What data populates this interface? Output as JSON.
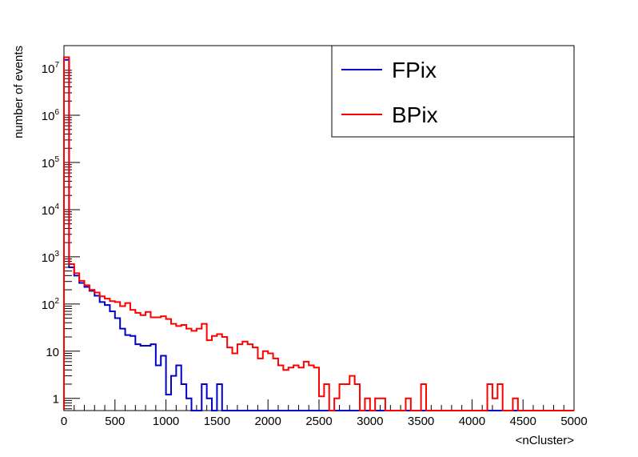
{
  "chart_data": {
    "type": "step-histogram",
    "xlabel": "<nCluster>",
    "ylabel": "number of events",
    "xlim": [
      0,
      5000
    ],
    "ylim": [
      0.55,
      30000000
    ],
    "yscale": "log",
    "bin_width": 50,
    "x_ticks": [
      0,
      500,
      1000,
      1500,
      2000,
      2500,
      3000,
      3500,
      4000,
      4500,
      5000
    ],
    "x_tick_labels": [
      "0",
      "500",
      "1000",
      "1500",
      "2000",
      "2500",
      "3000",
      "3500",
      "4000",
      "4500",
      "5000"
    ],
    "y_tick_labels": [
      {
        "value": 1,
        "base": "1",
        "exp": ""
      },
      {
        "value": 10,
        "base": "10",
        "exp": ""
      },
      {
        "value": 100,
        "base": "10",
        "exp": "2"
      },
      {
        "value": 1000,
        "base": "10",
        "exp": "3"
      },
      {
        "value": 10000,
        "base": "10",
        "exp": "4"
      },
      {
        "value": 100000,
        "base": "10",
        "exp": "5"
      },
      {
        "value": 1000000,
        "base": "10",
        "exp": "6"
      },
      {
        "value": 10000000,
        "base": "10",
        "exp": "7"
      }
    ],
    "legend_position": "top-right",
    "series": [
      {
        "name": "FPix",
        "color": "#0000cc",
        "bins": [
          {
            "x": 0,
            "y": 15000000
          },
          {
            "x": 50,
            "y": 600
          },
          {
            "x": 100,
            "y": 400
          },
          {
            "x": 150,
            "y": 280
          },
          {
            "x": 200,
            "y": 230
          },
          {
            "x": 250,
            "y": 190
          },
          {
            "x": 300,
            "y": 150
          },
          {
            "x": 350,
            "y": 110
          },
          {
            "x": 400,
            "y": 95
          },
          {
            "x": 450,
            "y": 70
          },
          {
            "x": 500,
            "y": 50
          },
          {
            "x": 550,
            "y": 30
          },
          {
            "x": 600,
            "y": 22
          },
          {
            "x": 650,
            "y": 21
          },
          {
            "x": 700,
            "y": 14
          },
          {
            "x": 750,
            "y": 13
          },
          {
            "x": 800,
            "y": 13
          },
          {
            "x": 850,
            "y": 14
          },
          {
            "x": 900,
            "y": 5
          },
          {
            "x": 950,
            "y": 8
          },
          {
            "x": 1000,
            "y": 1.2
          },
          {
            "x": 1050,
            "y": 3
          },
          {
            "x": 1100,
            "y": 5
          },
          {
            "x": 1150,
            "y": 2
          },
          {
            "x": 1200,
            "y": 1
          },
          {
            "x": 1350,
            "y": 2
          },
          {
            "x": 1400,
            "y": 1
          },
          {
            "x": 1500,
            "y": 2
          }
        ]
      },
      {
        "name": "BPix",
        "color": "#ff0000",
        "bins": [
          {
            "x": 0,
            "y": 17000000
          },
          {
            "x": 50,
            "y": 700
          },
          {
            "x": 100,
            "y": 450
          },
          {
            "x": 150,
            "y": 310
          },
          {
            "x": 200,
            "y": 250
          },
          {
            "x": 250,
            "y": 200
          },
          {
            "x": 300,
            "y": 175
          },
          {
            "x": 350,
            "y": 145
          },
          {
            "x": 400,
            "y": 130
          },
          {
            "x": 450,
            "y": 115
          },
          {
            "x": 500,
            "y": 110
          },
          {
            "x": 550,
            "y": 90
          },
          {
            "x": 600,
            "y": 105
          },
          {
            "x": 650,
            "y": 75
          },
          {
            "x": 700,
            "y": 65
          },
          {
            "x": 750,
            "y": 58
          },
          {
            "x": 800,
            "y": 68
          },
          {
            "x": 850,
            "y": 52
          },
          {
            "x": 900,
            "y": 52
          },
          {
            "x": 950,
            "y": 55
          },
          {
            "x": 1000,
            "y": 48
          },
          {
            "x": 1050,
            "y": 38
          },
          {
            "x": 1100,
            "y": 34
          },
          {
            "x": 1150,
            "y": 36
          },
          {
            "x": 1200,
            "y": 30
          },
          {
            "x": 1250,
            "y": 27
          },
          {
            "x": 1300,
            "y": 30
          },
          {
            "x": 1350,
            "y": 38
          },
          {
            "x": 1400,
            "y": 17
          },
          {
            "x": 1450,
            "y": 21
          },
          {
            "x": 1500,
            "y": 23
          },
          {
            "x": 1550,
            "y": 20
          },
          {
            "x": 1600,
            "y": 12
          },
          {
            "x": 1650,
            "y": 9
          },
          {
            "x": 1700,
            "y": 14
          },
          {
            "x": 1750,
            "y": 16
          },
          {
            "x": 1800,
            "y": 14
          },
          {
            "x": 1850,
            "y": 12
          },
          {
            "x": 1900,
            "y": 7
          },
          {
            "x": 1950,
            "y": 10
          },
          {
            "x": 2000,
            "y": 9
          },
          {
            "x": 2050,
            "y": 7
          },
          {
            "x": 2100,
            "y": 5
          },
          {
            "x": 2150,
            "y": 4
          },
          {
            "x": 2200,
            "y": 4.5
          },
          {
            "x": 2250,
            "y": 5
          },
          {
            "x": 2300,
            "y": 4.5
          },
          {
            "x": 2350,
            "y": 6
          },
          {
            "x": 2400,
            "y": 5
          },
          {
            "x": 2450,
            "y": 4.5
          },
          {
            "x": 2500,
            "y": 1.1
          },
          {
            "x": 2550,
            "y": 2
          },
          {
            "x": 2650,
            "y": 1
          },
          {
            "x": 2700,
            "y": 2
          },
          {
            "x": 2750,
            "y": 2
          },
          {
            "x": 2800,
            "y": 3
          },
          {
            "x": 2850,
            "y": 2
          },
          {
            "x": 2950,
            "y": 1
          },
          {
            "x": 3050,
            "y": 1
          },
          {
            "x": 3100,
            "y": 1
          },
          {
            "x": 3350,
            "y": 1
          },
          {
            "x": 3500,
            "y": 2
          },
          {
            "x": 4150,
            "y": 2
          },
          {
            "x": 4200,
            "y": 1
          },
          {
            "x": 4250,
            "y": 2
          },
          {
            "x": 4400,
            "y": 1
          }
        ]
      }
    ]
  }
}
